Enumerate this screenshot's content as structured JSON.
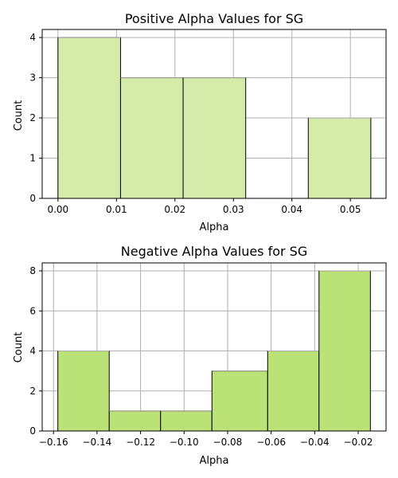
{
  "chart_data": [
    {
      "type": "bar",
      "title": "Positive Alpha Values for SG",
      "xlabel": "Alpha",
      "ylabel": "Count",
      "xlim": [
        -0.0027,
        0.0561
      ],
      "ylim": [
        0,
        4.2
      ],
      "xticks": [
        0.0,
        0.01,
        0.02,
        0.03,
        0.04,
        0.05
      ],
      "xtick_labels": [
        "0.00",
        "0.01",
        "0.02",
        "0.03",
        "0.04",
        "0.05"
      ],
      "yticks": [
        0,
        1,
        2,
        3,
        4
      ],
      "ytick_labels": [
        "0",
        "1",
        "2",
        "3",
        "4"
      ],
      "grid": true,
      "bar_color": "#d4ebaa",
      "bins": [
        {
          "x0": 0.0,
          "x1": 0.0107,
          "value": 4
        },
        {
          "x0": 0.0107,
          "x1": 0.0214,
          "value": 3
        },
        {
          "x0": 0.0214,
          "x1": 0.0321,
          "value": 3
        },
        {
          "x0": 0.0321,
          "x1": 0.0428,
          "value": 0
        },
        {
          "x0": 0.0428,
          "x1": 0.0535,
          "value": 2
        }
      ]
    },
    {
      "type": "bar",
      "title": "Negative Alpha Values for SG",
      "xlabel": "Alpha",
      "ylabel": "Count",
      "xlim": [
        -0.1652,
        -0.0072
      ],
      "ylim": [
        0,
        8.4
      ],
      "xticks": [
        -0.16,
        -0.14,
        -0.12,
        -0.1,
        -0.08,
        -0.06,
        -0.04,
        -0.02
      ],
      "xtick_labels": [
        "−0.16",
        "−0.14",
        "−0.12",
        "−0.10",
        "−0.08",
        "−0.06",
        "−0.04",
        "−0.02"
      ],
      "yticks": [
        0,
        2,
        4,
        6,
        8
      ],
      "ytick_labels": [
        "0",
        "2",
        "4",
        "6",
        "8"
      ],
      "grid": true,
      "bar_color": "#bae277",
      "bins": [
        {
          "x0": -0.158,
          "x1": -0.1344,
          "value": 4
        },
        {
          "x0": -0.1344,
          "x1": -0.1108,
          "value": 1
        },
        {
          "x0": -0.1108,
          "x1": -0.0872,
          "value": 1
        },
        {
          "x0": -0.0872,
          "x1": -0.0616,
          "value": 3
        },
        {
          "x0": -0.0616,
          "x1": -0.038,
          "value": 4
        },
        {
          "x0": -0.038,
          "x1": -0.0144,
          "value": 8
        }
      ]
    }
  ]
}
